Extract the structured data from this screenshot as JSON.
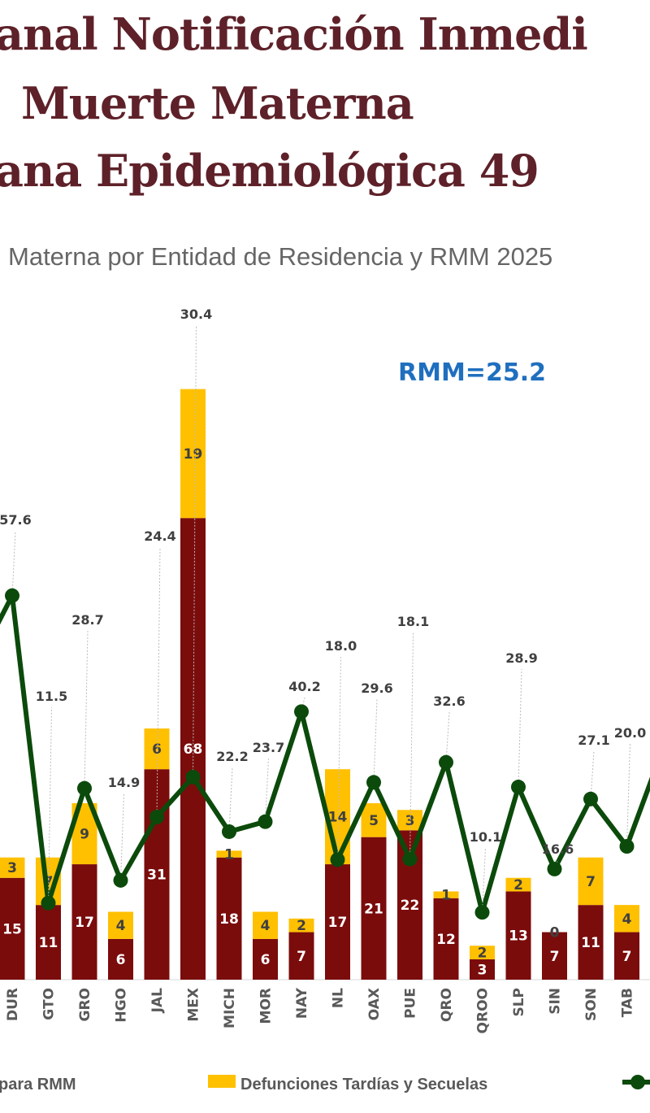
{
  "header": {
    "title_line1": "anal  Notificación Inmedi",
    "title_line2": "Muerte Materna",
    "title_line3": "ana Epidemiológica 49",
    "subtitle": "Materna por Entidad de Residencia y RMM 2025"
  },
  "chart_data": {
    "type": "bar",
    "stacked": true,
    "title": "Materna por Entidad de Residencia y RMM 2025",
    "annotation": "RMM=25.2",
    "categories": [
      "DUR",
      "GTO",
      "GRO",
      "HGO",
      "JAL",
      "MEX",
      "MICH",
      "MOR",
      "NAY",
      "NL",
      "OAX",
      "PUE",
      "QRO",
      "QROO",
      "SLP",
      "SIN",
      "SON",
      "TAB"
    ],
    "series": [
      {
        "name": "para RMM",
        "type": "bar",
        "color": "#7B0C0C",
        "values": [
          15,
          11,
          17,
          6,
          31,
          68,
          18,
          6,
          7,
          17,
          21,
          22,
          12,
          3,
          13,
          7,
          11,
          7
        ]
      },
      {
        "name": "Defunciones Tardías y Secuelas",
        "type": "bar",
        "color": "#FFC000",
        "values": [
          3,
          7,
          9,
          4,
          6,
          19,
          1,
          4,
          2,
          14,
          5,
          3,
          1,
          2,
          2,
          0,
          7,
          4
        ]
      },
      {
        "name": "RMM",
        "type": "line",
        "color": "#0B4A0B",
        "values": [
          57.6,
          11.5,
          28.7,
          14.9,
          24.4,
          30.4,
          22.2,
          23.7,
          40.2,
          18.0,
          29.6,
          18.1,
          32.6,
          10.1,
          28.9,
          16.6,
          27.1,
          20.0
        ],
        "labels": [
          "57.6",
          "11.5",
          "28.7",
          "14.9",
          "24.4",
          "30.4",
          "22.2",
          "23.7",
          "40.2",
          "18.0",
          "29.6",
          "18.1",
          "32.6",
          "10.1",
          "28.9",
          "16.6",
          "27.1",
          "20.0"
        ]
      }
    ],
    "legend": [
      "para RMM",
      "Defunciones Tardías y Secuelas"
    ],
    "legend_position": "bottom",
    "grid": false
  }
}
